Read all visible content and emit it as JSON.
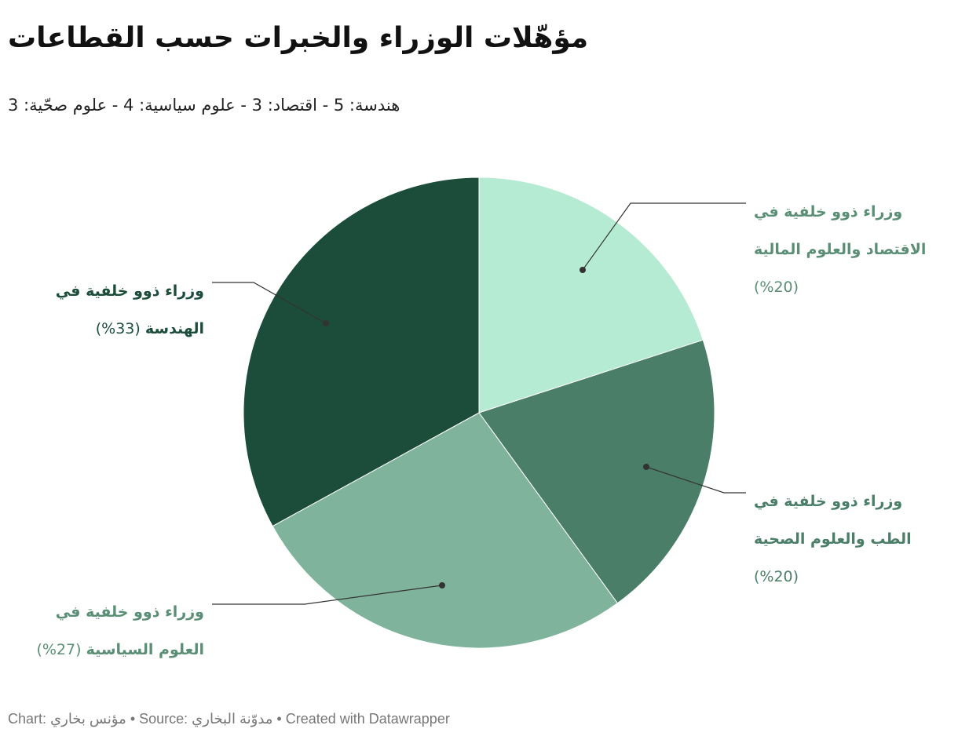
{
  "chart_data": {
    "type": "pie",
    "title": "مؤهّلات الوزراء والخبرات حسب القطاعات",
    "subtitle": "هندسة: 5 - اقتصاد: 3 - علوم سياسية: 4 - علوم صحّية: 3",
    "footer": "Chart: مؤنس بخاري • Source: مدوّنة البخاري • Created with Datawrapper",
    "categories": [
      "وزراء ذوو خلفية في الاقتصاد والعلوم المالية",
      "وزراء ذوو خلفية في الطب والعلوم الصحية",
      "وزراء ذوو خلفية في العلوم السياسية",
      "وزراء ذوو خلفية في الهندسة"
    ],
    "values": [
      20,
      20,
      27,
      33
    ],
    "value_labels": [
      "(20%)",
      "(20%)",
      "(27%)",
      "(33%)"
    ],
    "colors": [
      "#b5ead3",
      "#4a7e68",
      "#7fb39c",
      "#1b4d3a"
    ],
    "label_colors": [
      "#5a8f76",
      "#4a7e68",
      "#5a8f76",
      "#1b4d3a"
    ]
  }
}
